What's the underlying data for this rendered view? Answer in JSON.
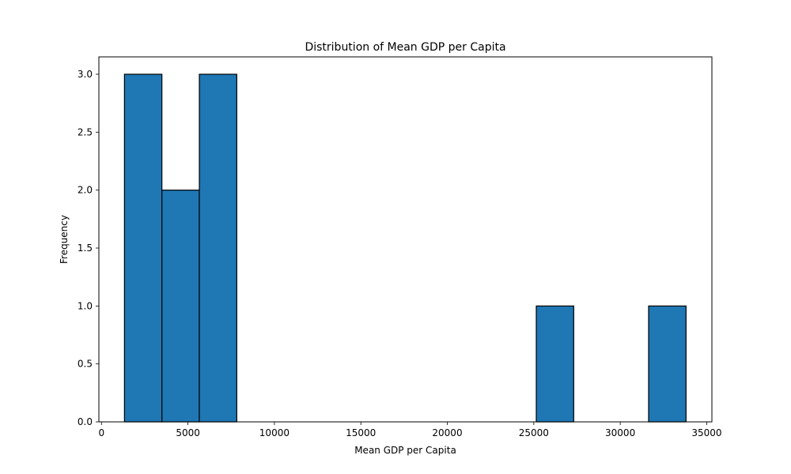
{
  "chart_data": {
    "type": "bar",
    "title": "Distribution of Mean GDP per Capita",
    "xlabel": "Mean GDP per Capita",
    "ylabel": "Frequency",
    "xlim": [
      -150,
      35300
    ],
    "ylim": [
      0,
      3.15
    ],
    "xticks": [
      0,
      5000,
      10000,
      15000,
      20000,
      25000,
      30000,
      35000
    ],
    "xtick_labels": [
      "0",
      "5000",
      "10000",
      "15000",
      "20000",
      "25000",
      "30000",
      "35000"
    ],
    "yticks": [
      0,
      0.5,
      1.0,
      1.5,
      2.0,
      2.5,
      3.0
    ],
    "ytick_labels": [
      "0.0",
      "0.5",
      "1.0",
      "1.5",
      "2.0",
      "2.5",
      "3.0"
    ],
    "bin_edges": [
      1330,
      3495,
      5660,
      7825,
      9990,
      12155,
      14320,
      16485,
      18650,
      20815,
      22980,
      25145,
      27310,
      29475,
      31640,
      33805
    ],
    "values": [
      3,
      2,
      3,
      0,
      0,
      0,
      0,
      0,
      0,
      0,
      0,
      1,
      0,
      0,
      1
    ],
    "grid": false,
    "colors": {
      "bar_fill": "#1f77b4",
      "bar_edge": "#000000"
    }
  }
}
